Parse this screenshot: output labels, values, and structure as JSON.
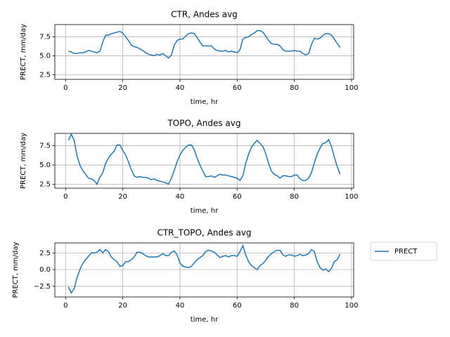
{
  "chart_data": [
    {
      "type": "line",
      "title": "CTR, Andes avg",
      "xlabel": "time, hr",
      "ylabel": "PRECT, mm/day",
      "x": [
        1,
        2,
        3,
        4,
        5,
        6,
        7,
        8,
        9,
        10,
        11,
        12,
        13,
        14,
        15,
        16,
        17,
        18,
        19,
        20,
        21,
        22,
        23,
        24,
        25,
        26,
        27,
        28,
        29,
        30,
        31,
        32,
        33,
        34,
        35,
        36,
        37,
        38,
        39,
        40,
        41,
        42,
        43,
        44,
        45,
        46,
        47,
        48,
        49,
        50,
        51,
        52,
        53,
        54,
        55,
        56,
        57,
        58,
        59,
        60,
        61,
        62,
        63,
        64,
        65,
        66,
        67,
        68,
        69,
        70,
        71,
        72,
        73,
        74,
        75,
        76,
        77,
        78,
        79,
        80,
        81,
        82,
        83,
        84,
        85,
        86,
        87,
        88,
        89,
        90,
        91,
        92,
        93,
        94,
        95,
        96
      ],
      "series": [
        {
          "name": "PRECT",
          "color": "#1f77b4",
          "values": [
            5.6,
            5.5,
            5.3,
            5.3,
            5.4,
            5.4,
            5.5,
            5.7,
            5.6,
            5.5,
            5.4,
            5.6,
            6.8,
            7.7,
            7.7,
            7.9,
            8.0,
            8.1,
            8.2,
            8.0,
            7.5,
            7.0,
            6.4,
            6.2,
            6.1,
            5.9,
            5.7,
            5.4,
            5.2,
            5.1,
            5.0,
            5.2,
            5.1,
            5.3,
            5.0,
            4.7,
            5.1,
            6.4,
            7.0,
            7.2,
            7.2,
            7.6,
            7.9,
            8.0,
            7.9,
            7.4,
            6.8,
            6.3,
            6.3,
            6.3,
            6.3,
            5.9,
            5.7,
            5.6,
            5.6,
            5.7,
            5.5,
            5.6,
            5.5,
            5.4,
            5.8,
            7.2,
            7.4,
            7.5,
            7.8,
            8.0,
            8.3,
            8.3,
            8.1,
            7.6,
            7.0,
            6.6,
            6.5,
            6.5,
            6.3,
            5.8,
            5.6,
            5.6,
            5.6,
            5.7,
            5.6,
            5.6,
            5.3,
            5.1,
            5.3,
            6.5,
            7.3,
            7.2,
            7.3,
            7.7,
            7.9,
            7.9,
            7.7,
            7.2,
            6.6,
            6.1
          ]
        }
      ],
      "xlim": [
        -3.75,
        100.75
      ],
      "xticks": [
        0,
        20,
        40,
        60,
        80,
        100
      ],
      "ylim": [
        1.9,
        9.1
      ],
      "yticks": [
        2.5,
        {
          "value": 5,
          "label": "5.0"
        },
        7.5
      ],
      "grid": true
    },
    {
      "type": "line",
      "title": "TOPO, Andes avg",
      "xlabel": "time, hr",
      "ylabel": "PRECT, mm/day",
      "x": [
        1,
        2,
        3,
        4,
        5,
        6,
        7,
        8,
        9,
        10,
        11,
        12,
        13,
        14,
        15,
        16,
        17,
        18,
        19,
        20,
        21,
        22,
        23,
        24,
        25,
        26,
        27,
        28,
        29,
        30,
        31,
        32,
        33,
        34,
        35,
        36,
        37,
        38,
        39,
        40,
        41,
        42,
        43,
        44,
        45,
        46,
        47,
        48,
        49,
        50,
        51,
        52,
        53,
        54,
        55,
        56,
        57,
        58,
        59,
        60,
        61,
        62,
        63,
        64,
        65,
        66,
        67,
        68,
        69,
        70,
        71,
        72,
        73,
        74,
        75,
        76,
        77,
        78,
        79,
        80,
        81,
        82,
        83,
        84,
        85,
        86,
        87,
        88,
        89,
        90,
        91,
        92,
        93,
        94,
        95,
        96
      ],
      "series": [
        {
          "name": "PRECT",
          "color": "#1f77b4",
          "values": [
            8.2,
            9.0,
            8.2,
            6.2,
            5.0,
            4.3,
            3.8,
            3.3,
            3.2,
            3.0,
            2.5,
            3.4,
            4.0,
            5.2,
            5.9,
            6.4,
            6.8,
            7.6,
            7.6,
            6.9,
            6.3,
            5.4,
            4.4,
            3.6,
            3.4,
            3.5,
            3.4,
            3.4,
            3.3,
            3.1,
            3.2,
            3.0,
            2.9,
            2.8,
            2.7,
            2.5,
            3.3,
            4.3,
            5.4,
            6.3,
            6.9,
            7.3,
            7.6,
            7.6,
            7.0,
            5.9,
            5.0,
            4.2,
            3.5,
            3.5,
            3.6,
            3.4,
            3.6,
            3.8,
            3.7,
            3.7,
            3.6,
            3.5,
            3.4,
            3.3,
            3.0,
            3.6,
            5.2,
            6.4,
            7.3,
            7.8,
            8.2,
            7.8,
            7.4,
            6.5,
            5.2,
            4.2,
            3.8,
            3.6,
            3.3,
            3.6,
            3.6,
            3.5,
            3.5,
            3.7,
            3.7,
            3.2,
            3.0,
            3.0,
            3.3,
            4.0,
            5.3,
            6.4,
            7.2,
            7.8,
            7.9,
            8.3,
            7.4,
            6.0,
            4.8,
            3.8
          ]
        }
      ],
      "xlim": [
        -3.75,
        100.75
      ],
      "xticks": [
        0,
        20,
        40,
        60,
        80,
        100
      ],
      "ylim": [
        2.0,
        9.1
      ],
      "yticks": [
        2.5,
        {
          "value": 5,
          "label": "5.0"
        },
        7.5
      ],
      "grid": true
    },
    {
      "type": "line",
      "title": "CTR_TOPO, Andes avg",
      "xlabel": "time, hr",
      "ylabel": "PRECT, mm/day",
      "x": [
        1,
        2,
        3,
        4,
        5,
        6,
        7,
        8,
        9,
        10,
        11,
        12,
        13,
        14,
        15,
        16,
        17,
        18,
        19,
        20,
        21,
        22,
        23,
        24,
        25,
        26,
        27,
        28,
        29,
        30,
        31,
        32,
        33,
        34,
        35,
        36,
        37,
        38,
        39,
        40,
        41,
        42,
        43,
        44,
        45,
        46,
        47,
        48,
        49,
        50,
        51,
        52,
        53,
        54,
        55,
        56,
        57,
        58,
        59,
        60,
        61,
        62,
        63,
        64,
        65,
        66,
        67,
        68,
        69,
        70,
        71,
        72,
        73,
        74,
        75,
        76,
        77,
        78,
        79,
        80,
        81,
        82,
        83,
        84,
        85,
        86,
        87,
        88,
        89,
        90,
        91,
        92,
        93,
        94,
        95,
        96
      ],
      "series": [
        {
          "name": "PRECT",
          "color": "#1f77b4",
          "values": [
            -2.6,
            -3.5,
            -2.9,
            -1.2,
            0.0,
            0.9,
            1.5,
            2.0,
            2.5,
            2.5,
            2.6,
            3.0,
            2.5,
            3.0,
            2.7,
            1.9,
            1.5,
            1.2,
            0.5,
            0.6,
            1.2,
            1.2,
            1.5,
            1.9,
            2.6,
            2.6,
            2.4,
            2.1,
            1.9,
            1.9,
            1.9,
            1.9,
            2.1,
            2.4,
            2.1,
            2.1,
            2.6,
            2.8,
            2.2,
            1.0,
            0.5,
            0.4,
            0.3,
            0.5,
            1.0,
            1.5,
            1.8,
            2.1,
            2.7,
            2.9,
            2.8,
            2.6,
            2.2,
            1.8,
            2.0,
            2.1,
            1.9,
            2.1,
            2.1,
            2.0,
            2.7,
            3.6,
            2.2,
            1.2,
            0.6,
            0.3,
            0.0,
            0.6,
            0.9,
            1.4,
            2.0,
            2.4,
            2.7,
            2.9,
            2.9,
            2.2,
            2.0,
            2.2,
            2.2,
            2.0,
            2.1,
            2.3,
            2.1,
            2.2,
            2.4,
            3.0,
            2.7,
            1.2,
            0.3,
            -0.1,
            0.1,
            -0.3,
            0.2,
            1.2,
            1.5,
            2.3
          ]
        }
      ],
      "xlim": [
        -3.75,
        100.75
      ],
      "xticks": [
        0,
        20,
        40,
        60,
        80,
        100
      ],
      "ylim": [
        -4.1,
        4.0
      ],
      "yticks": [
        {
          "value": -2.5,
          "label": "−2.5"
        },
        {
          "value": 0,
          "label": "0.0"
        },
        2.5
      ],
      "grid": true,
      "legend": "outside"
    }
  ]
}
